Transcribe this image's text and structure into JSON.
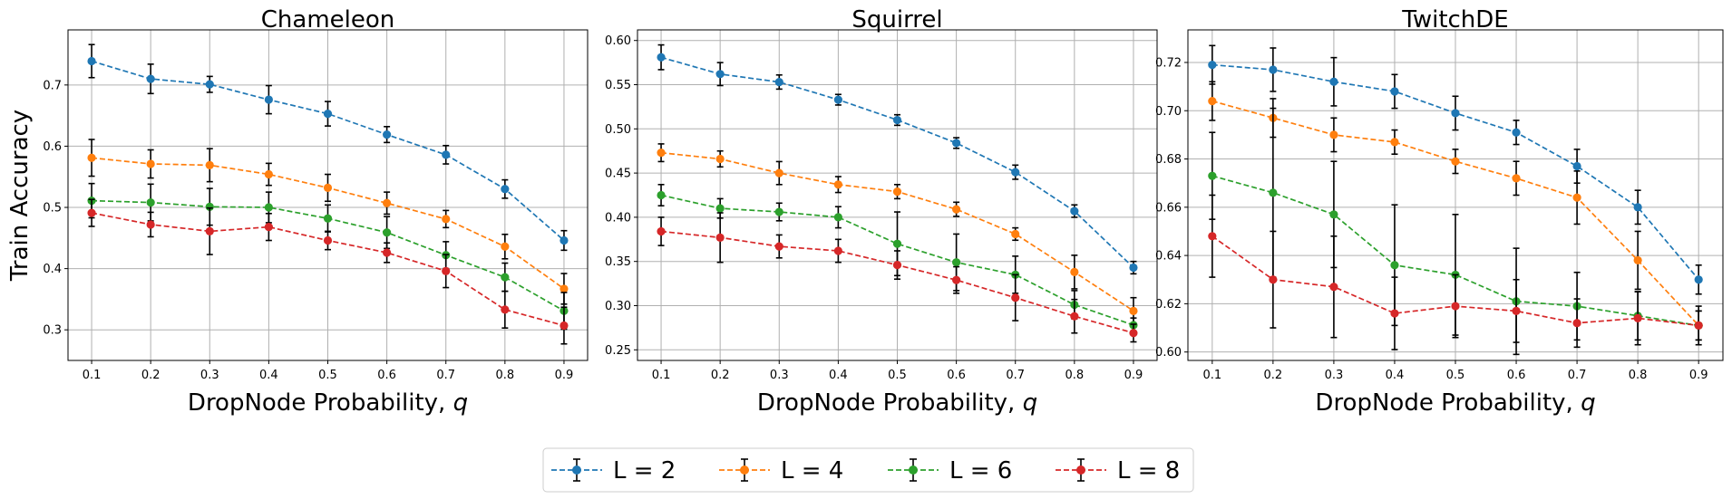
{
  "chart_data": [
    {
      "type": "line",
      "title": "Chameleon",
      "xlabel": "DropNode Probability, ",
      "xlabel_symbol": "q",
      "ylabel": "Train Accuracy",
      "x": [
        0.1,
        0.2,
        0.3,
        0.4,
        0.5,
        0.6,
        0.7,
        0.8,
        0.9
      ],
      "xticks": [
        "0.1",
        "0.2",
        "0.3",
        "0.4",
        "0.5",
        "0.6",
        "0.7",
        "0.8",
        "0.9"
      ],
      "ylim": [
        0.25,
        0.79
      ],
      "yticks": [
        "0.3",
        "0.4",
        "0.5",
        "0.6",
        "0.7"
      ],
      "ytick_values": [
        0.3,
        0.4,
        0.5,
        0.6,
        0.7
      ],
      "grid": true,
      "series": [
        {
          "name": "L = 2",
          "values": [
            0.739,
            0.71,
            0.701,
            0.676,
            0.653,
            0.619,
            0.586,
            0.53,
            0.446
          ],
          "errors": [
            0.027,
            0.024,
            0.013,
            0.023,
            0.02,
            0.013,
            0.015,
            0.015,
            0.016
          ]
        },
        {
          "name": "L = 4",
          "values": [
            0.581,
            0.571,
            0.569,
            0.554,
            0.532,
            0.507,
            0.481,
            0.436,
            0.367
          ],
          "errors": [
            0.03,
            0.023,
            0.027,
            0.018,
            0.022,
            0.018,
            0.014,
            0.02,
            0.025
          ]
        },
        {
          "name": "L = 6",
          "values": [
            0.511,
            0.508,
            0.501,
            0.5,
            0.482,
            0.459,
            0.422,
            0.386,
            0.331
          ],
          "errors": [
            0.028,
            0.03,
            0.03,
            0.025,
            0.022,
            0.026,
            0.022,
            0.023,
            0.03
          ]
        },
        {
          "name": "L = 8",
          "values": [
            0.491,
            0.472,
            0.461,
            0.468,
            0.446,
            0.426,
            0.396,
            0.333,
            0.307
          ],
          "errors": [
            0.022,
            0.02,
            0.038,
            0.022,
            0.015,
            0.016,
            0.027,
            0.03,
            0.03
          ]
        }
      ]
    },
    {
      "type": "line",
      "title": "Squirrel",
      "xlabel": "DropNode Probability, ",
      "xlabel_symbol": "q",
      "ylabel": "",
      "x": [
        0.1,
        0.2,
        0.3,
        0.4,
        0.5,
        0.6,
        0.7,
        0.8,
        0.9
      ],
      "xticks": [
        "0.1",
        "0.2",
        "0.3",
        "0.4",
        "0.5",
        "0.6",
        "0.7",
        "0.8",
        "0.9"
      ],
      "ylim": [
        0.238,
        0.612
      ],
      "yticks": [
        "0.25",
        "0.30",
        "0.35",
        "0.40",
        "0.45",
        "0.50",
        "0.55",
        "0.60"
      ],
      "ytick_values": [
        0.25,
        0.3,
        0.35,
        0.4,
        0.45,
        0.5,
        0.55,
        0.6
      ],
      "grid": true,
      "series": [
        {
          "name": "L = 2",
          "values": [
            0.581,
            0.562,
            0.553,
            0.533,
            0.51,
            0.484,
            0.451,
            0.407,
            0.343
          ],
          "errors": [
            0.014,
            0.013,
            0.008,
            0.006,
            0.006,
            0.006,
            0.008,
            0.007,
            0.007
          ]
        },
        {
          "name": "L = 4",
          "values": [
            0.473,
            0.466,
            0.45,
            0.437,
            0.429,
            0.409,
            0.381,
            0.338,
            0.294
          ],
          "errors": [
            0.01,
            0.009,
            0.013,
            0.009,
            0.008,
            0.008,
            0.007,
            0.019,
            0.015
          ]
        },
        {
          "name": "L = 6",
          "values": [
            0.425,
            0.41,
            0.406,
            0.4,
            0.37,
            0.349,
            0.335,
            0.301,
            0.278
          ],
          "errors": [
            0.012,
            0.011,
            0.01,
            0.012,
            0.036,
            0.032,
            0.021,
            0.016,
            0.008
          ]
        },
        {
          "name": "L = 8",
          "values": [
            0.384,
            0.377,
            0.367,
            0.362,
            0.346,
            0.329,
            0.309,
            0.288,
            0.269
          ],
          "errors": [
            0.016,
            0.028,
            0.013,
            0.013,
            0.016,
            0.015,
            0.026,
            0.019,
            0.01
          ]
        }
      ]
    },
    {
      "type": "line",
      "title": "TwitchDE",
      "xlabel": "DropNode Probability, ",
      "xlabel_symbol": "q",
      "ylabel": "",
      "x": [
        0.1,
        0.2,
        0.3,
        0.4,
        0.5,
        0.6,
        0.7,
        0.8,
        0.9
      ],
      "xticks": [
        "0.1",
        "0.2",
        "0.3",
        "0.4",
        "0.5",
        "0.6",
        "0.7",
        "0.8",
        "0.9"
      ],
      "ylim": [
        0.5965,
        0.7335
      ],
      "yticks": [
        "0.60",
        "0.62",
        "0.64",
        "0.66",
        "0.68",
        "0.70",
        "0.72"
      ],
      "ytick_values": [
        0.6,
        0.62,
        0.64,
        0.66,
        0.68,
        0.7,
        0.72
      ],
      "grid": true,
      "series": [
        {
          "name": "L = 2",
          "values": [
            0.719,
            0.717,
            0.712,
            0.708,
            0.699,
            0.691,
            0.677,
            0.66,
            0.63
          ],
          "errors": [
            0.008,
            0.009,
            0.01,
            0.007,
            0.007,
            0.005,
            0.007,
            0.007,
            0.006
          ]
        },
        {
          "name": "L = 4",
          "values": [
            0.704,
            0.697,
            0.69,
            0.687,
            0.679,
            0.672,
            0.664,
            0.638,
            0.611
          ],
          "errors": [
            0.008,
            0.008,
            0.007,
            0.005,
            0.005,
            0.007,
            0.011,
            0.012,
            0.008
          ]
        },
        {
          "name": "L = 6",
          "values": [
            0.673,
            0.666,
            0.657,
            0.636,
            0.632,
            0.621,
            0.619,
            0.615,
            0.611
          ],
          "errors": [
            0.018,
            0.035,
            0.022,
            0.025,
            0.025,
            0.022,
            0.014,
            0.01,
            0.006
          ]
        },
        {
          "name": "L = 8",
          "values": [
            0.648,
            0.63,
            0.627,
            0.616,
            0.619,
            0.617,
            0.612,
            0.614,
            0.611
          ],
          "errors": [
            0.017,
            0.02,
            0.021,
            0.015,
            0.013,
            0.013,
            0.01,
            0.011,
            0.006
          ]
        }
      ]
    }
  ],
  "legend": {
    "placement": "bottom-center",
    "entries": [
      {
        "label": "L = 2",
        "color": "#1f77b4"
      },
      {
        "label": "L = 4",
        "color": "#ff7f0e"
      },
      {
        "label": "L = 6",
        "color": "#2ca02c"
      },
      {
        "label": "L = 8",
        "color": "#d62728"
      }
    ]
  },
  "colors": {
    "series": [
      "#1f77b4",
      "#ff7f0e",
      "#2ca02c",
      "#d62728"
    ],
    "grid": "#b0b0b0",
    "errorbar": "#000000"
  }
}
